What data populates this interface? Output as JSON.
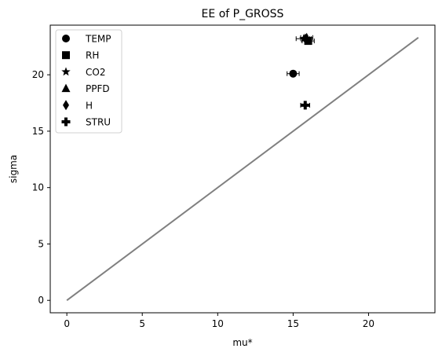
{
  "chart_data": {
    "type": "scatter",
    "title": "EE of P_GROSS",
    "xlabel": "mu*",
    "ylabel": "sigma",
    "xlim": [
      -1.1,
      24.4
    ],
    "ylim": [
      -1.1,
      24.4
    ],
    "xticks": [
      0,
      5,
      10,
      15,
      20
    ],
    "yticks": [
      0,
      5,
      10,
      15,
      20
    ],
    "grid": false,
    "legend_position": "top-left",
    "reference_line": {
      "x": [
        0,
        23.3
      ],
      "y": [
        0,
        23.3
      ],
      "color": "#808080"
    },
    "series": [
      {
        "name": "TEMP",
        "marker": "circle",
        "x": 15.0,
        "y": 20.1,
        "xerr": 0.4
      },
      {
        "name": "RH",
        "marker": "square",
        "x": 16.0,
        "y": 23.0,
        "xerr": 0.4
      },
      {
        "name": "CO2",
        "marker": "star",
        "x": 15.7,
        "y": 23.2,
        "xerr": 0.5
      },
      {
        "name": "PPFD",
        "marker": "triangle",
        "x": 15.9,
        "y": 23.3,
        "xerr": 0.4
      },
      {
        "name": "H",
        "marker": "diamond",
        "x": 15.8,
        "y": 23.2,
        "xerr": 0.3
      },
      {
        "name": "STRU",
        "marker": "plus",
        "x": 15.8,
        "y": 17.3,
        "xerr": 0.3
      }
    ]
  }
}
